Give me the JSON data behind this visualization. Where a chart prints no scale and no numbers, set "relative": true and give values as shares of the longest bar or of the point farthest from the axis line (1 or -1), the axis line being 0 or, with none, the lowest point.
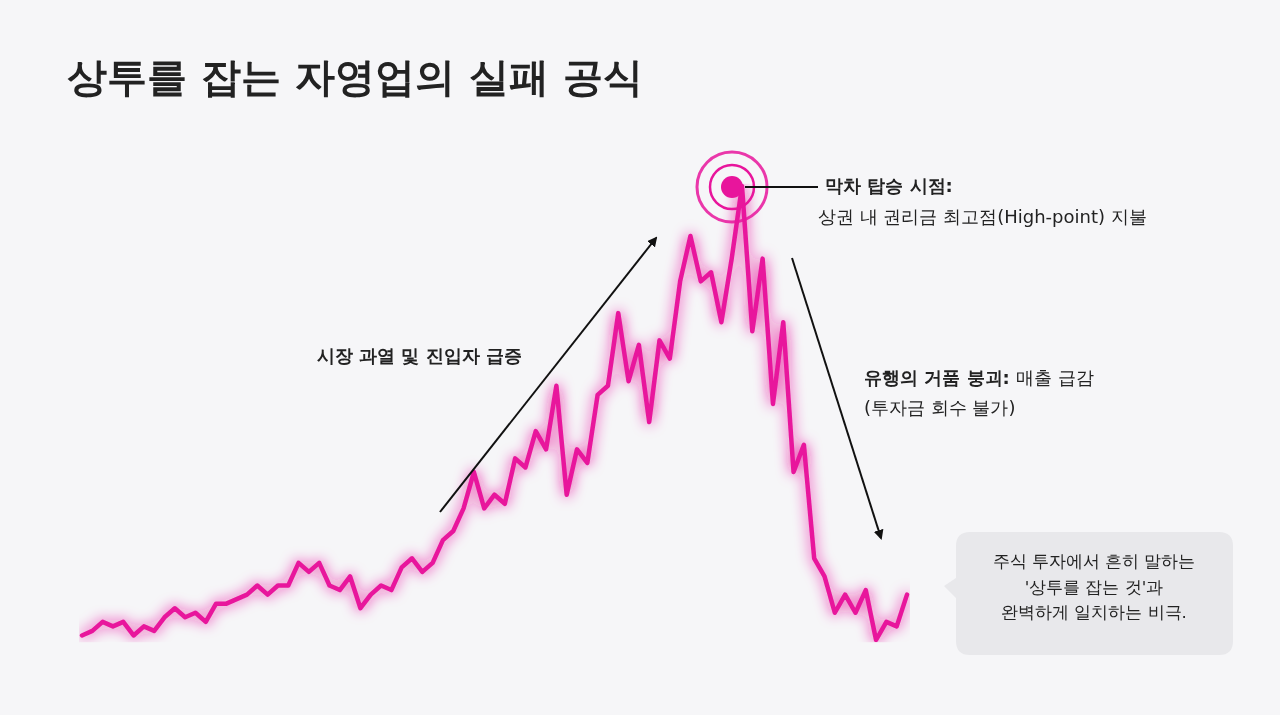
{
  "chart_data": {
    "type": "line",
    "title": "상투를 잡는 자영업의 실패 공식",
    "relative": true,
    "color": "#e8159c",
    "marker": "none",
    "categories": [
      null,
      null,
      null,
      null,
      null,
      null,
      null,
      null,
      null,
      null,
      null,
      null,
      null,
      null,
      null,
      null,
      null,
      null,
      null,
      null,
      null,
      null,
      null,
      null,
      null,
      null,
      null,
      null,
      null,
      null,
      null,
      null,
      null,
      null,
      null,
      null,
      null,
      null,
      null,
      null,
      null,
      null,
      null,
      null,
      null,
      null,
      null,
      null,
      null,
      null,
      null,
      null,
      null,
      null,
      null,
      null,
      null,
      null,
      null,
      null,
      null,
      null,
      null,
      null,
      null,
      null,
      null,
      null,
      null,
      null,
      null,
      null,
      null,
      null,
      null,
      null,
      null,
      null,
      null,
      null,
      null
    ],
    "values": [
      0.01,
      0.02,
      0.04,
      0.03,
      0.04,
      0.01,
      0.03,
      0.02,
      0.05,
      0.07,
      0.05,
      0.06,
      0.04,
      0.08,
      0.08,
      0.09,
      0.1,
      0.12,
      0.1,
      0.12,
      0.12,
      0.17,
      0.15,
      0.17,
      0.12,
      0.11,
      0.14,
      0.07,
      0.1,
      0.12,
      0.11,
      0.16,
      0.18,
      0.15,
      0.17,
      0.22,
      0.24,
      0.29,
      0.37,
      0.29,
      0.32,
      0.3,
      0.4,
      0.38,
      0.46,
      0.42,
      0.56,
      0.32,
      0.42,
      0.39,
      0.54,
      0.56,
      0.72,
      0.57,
      0.65,
      0.48,
      0.66,
      0.62,
      0.79,
      0.89,
      0.79,
      0.81,
      0.7,
      0.84,
      1,
      0.68,
      0.84,
      0.52,
      0.7,
      0.37,
      0.43,
      0.18,
      0.14,
      0.06,
      0.1,
      0.06,
      0.11,
      0,
      0.04,
      0.03,
      0.1
    ],
    "annotations": [
      "시장 과열 및 진입자 급증",
      "막차 탑승 시점:",
      "상권 내 권리금 최고점(High-point) 지불",
      "유행의 거품 붕괴:",
      "매출 급감",
      "(투자금 회수 불가)",
      "주식 투자에서 흔히 말하는\n'상투를 잡는 것'과\n완벽하게 일치하는 비극."
    ]
  }
}
